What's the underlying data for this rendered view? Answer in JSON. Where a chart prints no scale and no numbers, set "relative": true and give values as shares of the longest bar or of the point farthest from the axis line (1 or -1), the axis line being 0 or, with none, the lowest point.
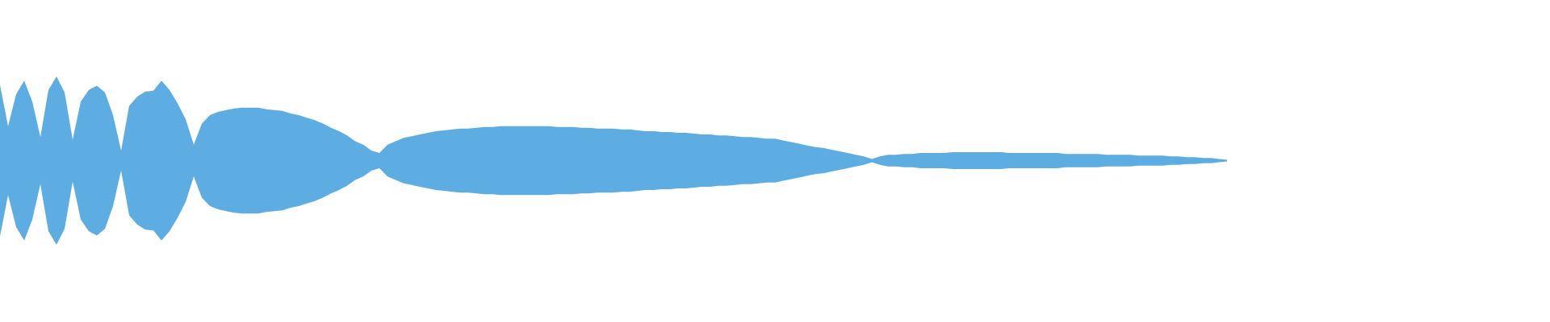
{
  "chart_data": {
    "type": "area",
    "relative": true,
    "categories": [
      null,
      null,
      null,
      null,
      null,
      null,
      null,
      null,
      null,
      null,
      null,
      null,
      null,
      null,
      null,
      null,
      null,
      null,
      null,
      null,
      null,
      null,
      null,
      null,
      null,
      null,
      null,
      null,
      null,
      null,
      null,
      null,
      null,
      null,
      null,
      null,
      null,
      null,
      null,
      null,
      null,
      null,
      null,
      null,
      null,
      null,
      null,
      null,
      null,
      null,
      null,
      null,
      null,
      null,
      null,
      null,
      null,
      null,
      null,
      null,
      null,
      null,
      null,
      null,
      null,
      null,
      null,
      null,
      null,
      null,
      null,
      null,
      null,
      null,
      null,
      null,
      null,
      null,
      null,
      null,
      null,
      null,
      null,
      null,
      null,
      null,
      null,
      null,
      null,
      null,
      null,
      null,
      null,
      null,
      null,
      null,
      null,
      null,
      null,
      null,
      null,
      null,
      null,
      null,
      null,
      null,
      null,
      null,
      null,
      null,
      null,
      null,
      null,
      null,
      null,
      null,
      null,
      null,
      null,
      null,
      null,
      null,
      null,
      null,
      null,
      null,
      null,
      null,
      null,
      null,
      null,
      null,
      null,
      null,
      null,
      null,
      null,
      null,
      null,
      null,
      null,
      null,
      null,
      null,
      null,
      null,
      null,
      null,
      null,
      null,
      null,
      null,
      null,
      null,
      null,
      null,
      null,
      null,
      null,
      null,
      null,
      null,
      null,
      null,
      null,
      null,
      null,
      null,
      null,
      null,
      null,
      null,
      null,
      null,
      null,
      null,
      null,
      null,
      null,
      null,
      null,
      null,
      null,
      null,
      null,
      null,
      null,
      null,
      null,
      null,
      null,
      null,
      null
    ],
    "series": [
      {
        "color": "#5dade2",
        "values": [
          0.9,
          0.41,
          0.79,
          0.95,
          0.7,
          0.28,
          0.84,
          1.0,
          0.81,
          0.25,
          0.7,
          0.84,
          0.89,
          0.81,
          0.54,
          0.12,
          0.65,
          0.76,
          0.82,
          0.83,
          0.95,
          0.84,
          0.68,
          0.49,
          0.19,
          0.44,
          0.54,
          0.58,
          0.6,
          0.62,
          0.63,
          0.63,
          0.63,
          0.61,
          0.6,
          0.59,
          0.56,
          0.54,
          0.51,
          0.48,
          0.44,
          0.39,
          0.35,
          0.3,
          0.23,
          0.19,
          0.12,
          0.09,
          0.19,
          0.23,
          0.27,
          0.29,
          0.31,
          0.33,
          0.35,
          0.36,
          0.37,
          0.38,
          0.38,
          0.39,
          0.4,
          0.4,
          0.41,
          0.41,
          0.41,
          0.41,
          0.41,
          0.41,
          0.41,
          0.4,
          0.4,
          0.4,
          0.39,
          0.39,
          0.38,
          0.38,
          0.38,
          0.37,
          0.37,
          0.36,
          0.35,
          0.35,
          0.34,
          0.34,
          0.33,
          0.33,
          0.32,
          0.31,
          0.31,
          0.3,
          0.3,
          0.29,
          0.28,
          0.28,
          0.27,
          0.26,
          0.26,
          0.24,
          0.22,
          0.2,
          0.18,
          0.16,
          0.15,
          0.13,
          0.11,
          0.09,
          0.07,
          0.05,
          0.02,
          0.05,
          0.07,
          0.07,
          0.08,
          0.08,
          0.09,
          0.09,
          0.09,
          0.09,
          0.1,
          0.1,
          0.1,
          0.1,
          0.1,
          0.1,
          0.1,
          0.09,
          0.09,
          0.09,
          0.09,
          0.09,
          0.09,
          0.09,
          0.08,
          0.08,
          0.08,
          0.08,
          0.08,
          0.07,
          0.07,
          0.07,
          0.07,
          0.06,
          0.06,
          0.06,
          0.06,
          0.05,
          0.05,
          0.04,
          0.04,
          0.03,
          0.03,
          0.02,
          0.01,
          null,
          null,
          null,
          null,
          null,
          null,
          null,
          null,
          null,
          null,
          null,
          null,
          null,
          null,
          null,
          null,
          null,
          null,
          null,
          null,
          null,
          null,
          null,
          null,
          null,
          null,
          null,
          null,
          null,
          null,
          null,
          null,
          null,
          null,
          null,
          null,
          null,
          null,
          null,
          null
        ]
      }
    ]
  }
}
